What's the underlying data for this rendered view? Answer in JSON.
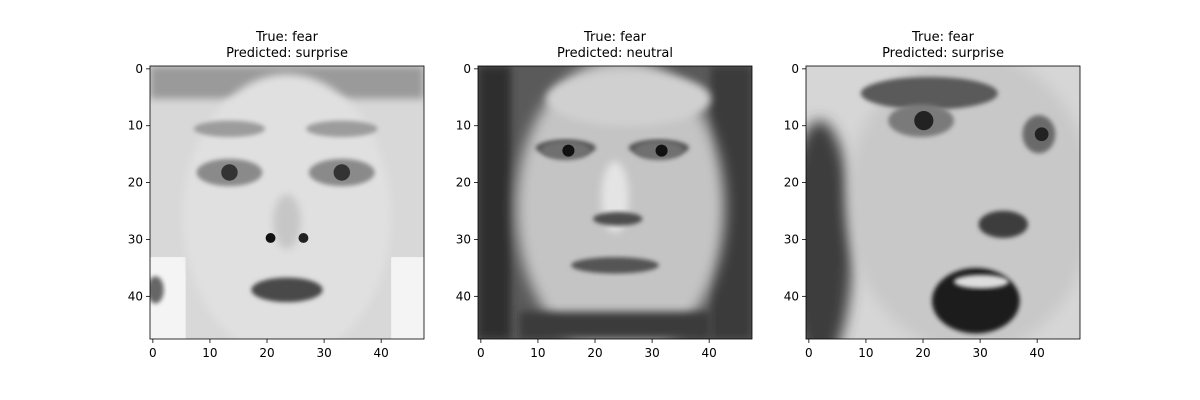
{
  "chart_data": [
    {
      "type": "image",
      "title_lines": [
        "True: fear",
        "Predicted: surprise"
      ],
      "image_size": [
        48,
        48
      ],
      "xticks": [
        0,
        10,
        20,
        30,
        40
      ],
      "yticks": [
        0,
        10,
        20,
        30,
        40
      ],
      "face": "face-1",
      "colormap": "gray"
    },
    {
      "type": "image",
      "title_lines": [
        "True: fear",
        "Predicted: neutral"
      ],
      "image_size": [
        48,
        48
      ],
      "xticks": [
        0,
        10,
        20,
        30,
        40
      ],
      "yticks": [
        0,
        10,
        20,
        30,
        40
      ],
      "face": "face-2",
      "colormap": "gray"
    },
    {
      "type": "image",
      "title_lines": [
        "True: fear",
        "Predicted: surprise"
      ],
      "image_size": [
        48,
        48
      ],
      "xticks": [
        0,
        10,
        20,
        30,
        40
      ],
      "yticks": [
        0,
        10,
        20,
        30,
        40
      ],
      "face": "face-3",
      "colormap": "gray"
    }
  ]
}
